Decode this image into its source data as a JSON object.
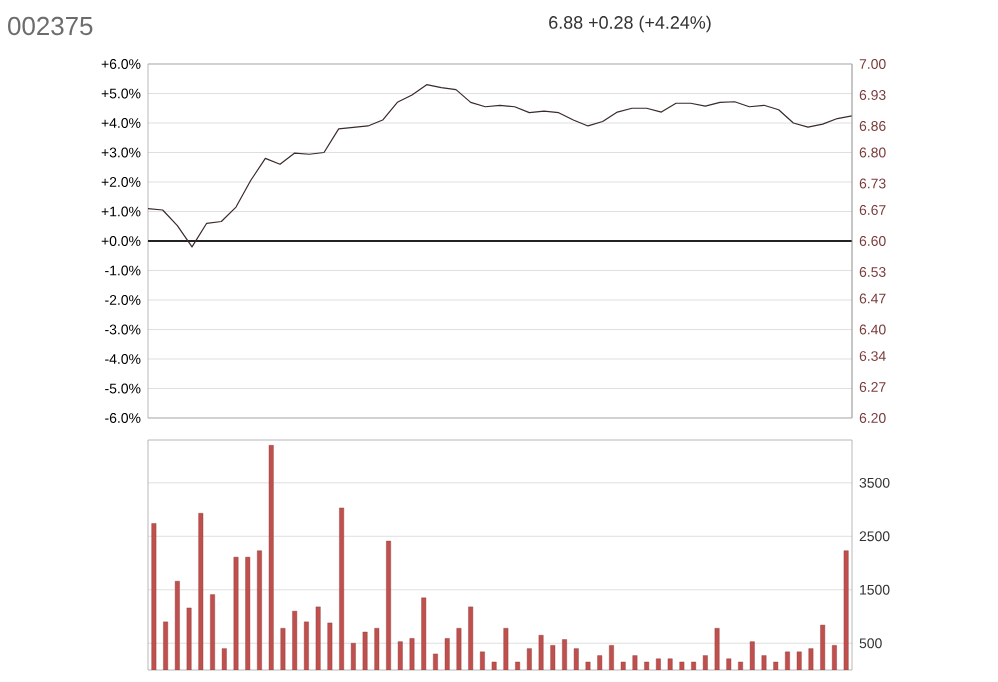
{
  "chart_data": [
    {
      "type": "line",
      "title": "002375",
      "subtitle": "6.88 +0.28 (+4.24%)",
      "categories": [
        null,
        null,
        null,
        null,
        null,
        null,
        null,
        null,
        null,
        null,
        null,
        null,
        null,
        null,
        null,
        null,
        null,
        null,
        null,
        null,
        null,
        null,
        null,
        null,
        null,
        null,
        null,
        null,
        null,
        null,
        null,
        null,
        null,
        null,
        null,
        null,
        null,
        null,
        null,
        null,
        null,
        null,
        null,
        null,
        null,
        null,
        null,
        null,
        null
      ],
      "ylim": [
        -6,
        6
      ],
      "yticks": [
        {
          "value": 6,
          "label": "+6.0%"
        },
        {
          "value": 5,
          "label": "+5.0%"
        },
        {
          "value": 4,
          "label": "+4.0%"
        },
        {
          "value": 3,
          "label": "+3.0%"
        },
        {
          "value": 2,
          "label": "+2.0%"
        },
        {
          "value": 1,
          "label": "+1.0%"
        },
        {
          "value": 0,
          "label": "+0.0%"
        },
        {
          "value": -1,
          "label": "-1.0%"
        },
        {
          "value": -2,
          "label": "-2.0%"
        },
        {
          "value": -3,
          "label": "-3.0%"
        },
        {
          "value": -4,
          "label": "-4.0%"
        },
        {
          "value": -5,
          "label": "-5.0%"
        },
        {
          "value": -6,
          "label": "-6.0%"
        }
      ],
      "y2lim": [
        6.2,
        7.0
      ],
      "y2ticks": [
        {
          "value": 7.0,
          "label": "7.00"
        },
        6.93,
        6.86,
        {
          "value": 6.8,
          "label": "6.80"
        },
        6.73,
        6.67,
        {
          "value": 6.6,
          "label": "6.60"
        },
        6.53,
        6.47,
        {
          "value": 6.4,
          "label": "6.40"
        },
        6.34,
        6.27,
        {
          "value": 6.2,
          "label": "6.20"
        }
      ],
      "grid": "y",
      "tick_labels": "y",
      "ref_lines": [
        {
          "axis": "y",
          "value": 0,
          "color": "#222222"
        }
      ],
      "series": [
        {
          "color": "#3a2a2a",
          "values": [
            1.1,
            1.05,
            0.52,
            -0.2,
            0.6,
            0.66,
            1.15,
            2.05,
            2.8,
            2.6,
            2.98,
            2.94,
            3.0,
            3.8,
            3.85,
            3.9,
            4.1,
            4.7,
            4.95,
            5.3,
            5.2,
            5.13,
            4.7,
            4.55,
            4.6,
            4.55,
            4.35,
            4.4,
            4.35,
            4.1,
            3.9,
            4.05,
            4.37,
            4.5,
            4.5,
            4.37,
            4.67,
            4.67,
            4.57,
            4.7,
            4.72,
            4.55,
            4.6,
            4.45,
            4.0,
            3.86,
            3.96,
            4.15,
            4.24
          ]
        }
      ]
    },
    {
      "type": "bar",
      "categories": [
        null,
        null,
        null,
        null,
        null,
        null,
        null,
        null,
        null,
        null,
        null,
        null,
        null,
        null,
        null,
        null,
        null,
        null,
        null,
        null,
        null,
        null,
        null,
        null,
        null,
        null,
        null,
        null,
        null,
        null,
        null,
        null,
        null,
        null,
        null,
        null,
        null,
        null,
        null,
        null,
        null,
        null,
        null,
        null,
        null,
        null,
        null,
        null,
        null,
        null,
        null,
        null,
        null,
        null,
        null,
        null,
        null,
        null,
        null,
        null
      ],
      "ylim": [
        0,
        4300
      ],
      "yticks": [
        500,
        1500,
        2500,
        3500
      ],
      "grid": "y",
      "tick_labels": "y",
      "series": [
        {
          "color": "#c0504d",
          "values": [
            2740,
            900,
            1660,
            1160,
            2930,
            1410,
            400,
            2110,
            2110,
            2230,
            4200,
            780,
            1100,
            900,
            1180,
            880,
            3030,
            500,
            710,
            780,
            2410,
            530,
            590,
            1350,
            300,
            590,
            780,
            1180,
            340,
            150,
            780,
            150,
            400,
            650,
            460,
            570,
            400,
            150,
            270,
            460,
            150,
            270,
            150,
            210,
            210,
            150,
            150,
            270,
            780,
            210,
            150,
            530,
            270,
            150,
            340,
            340,
            400,
            840,
            460,
            2230
          ]
        }
      ]
    }
  ]
}
